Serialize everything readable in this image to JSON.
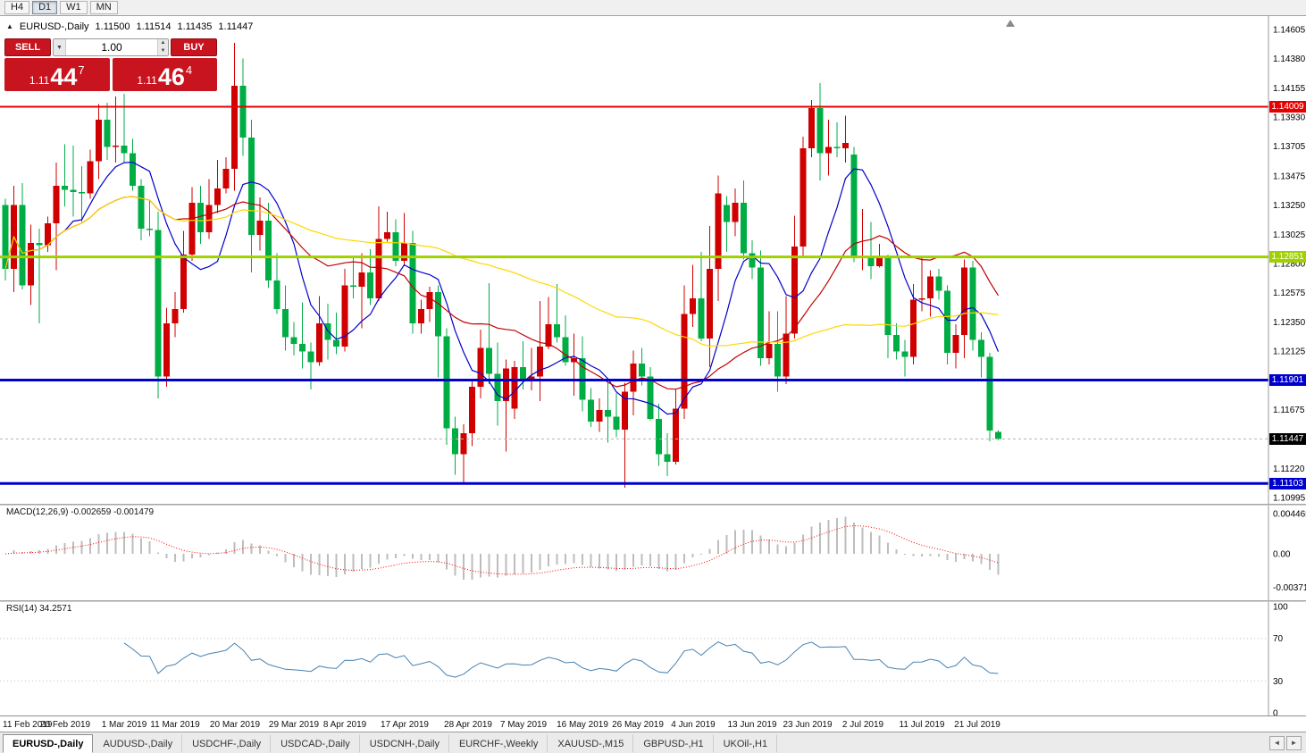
{
  "toolbar": {
    "timeframes": [
      "H4",
      "D1",
      "W1",
      "MN"
    ],
    "active": "D1"
  },
  "info_line": {
    "symbol": "EURUSD-,Daily",
    "open": "1.11500",
    "high": "1.11514",
    "low": "1.11435",
    "close": "1.11447"
  },
  "one_click": {
    "sell_label": "SELL",
    "buy_label": "BUY",
    "lot_value": "1.00",
    "panel_color": "#c8141f",
    "sell_price": {
      "prefix": "1.11",
      "pips": "44",
      "point": "7"
    },
    "buy_price": {
      "prefix": "1.11",
      "pips": "46",
      "point": "4"
    }
  },
  "price_axis": {
    "ticks": [
      "1.14605",
      "1.14380",
      "1.14155",
      "1.13930",
      "1.13705",
      "1.13475",
      "1.13250",
      "1.13025",
      "1.12800",
      "1.12575",
      "1.12350",
      "1.12125",
      "1.11900",
      "1.11675",
      "1.11450",
      "1.11220",
      "1.10995"
    ]
  },
  "levels": [
    {
      "label": "1.14009",
      "price": 1.14009,
      "color": "#e60000",
      "width": 2
    },
    {
      "label": "1.12851",
      "price": 1.12851,
      "color": "#a0d000",
      "width": 3
    },
    {
      "label": "1.11901",
      "price": 1.11901,
      "color": "#0000cd",
      "width": 3
    },
    {
      "label": "1.11103",
      "price": 1.11103,
      "color": "#0000cd",
      "width": 3
    }
  ],
  "current_price": {
    "label": "1.11447",
    "price": 1.11447,
    "box_color": "#000000"
  },
  "chart_data": {
    "type": "candlestick",
    "symbol": "EURUSD",
    "timeframe": "Daily",
    "price_range": {
      "min": 1.10995,
      "max": 1.14605
    },
    "colors": {
      "bull": "#d00000",
      "bear": "#00ad45"
    },
    "moving_averages": [
      {
        "period": 8,
        "color": "#0000cd"
      },
      {
        "period": 21,
        "color": "#c00000"
      },
      {
        "period": 55,
        "color": "#ffd700"
      }
    ],
    "x_labels": [
      {
        "label": "11 Feb 2019",
        "bar": 0
      },
      {
        "label": "20 Feb 2019",
        "bar": 7
      },
      {
        "label": "1 Mar 2019",
        "bar": 14
      },
      {
        "label": "11 Mar 2019",
        "bar": 20
      },
      {
        "label": "20 Mar 2019",
        "bar": 27
      },
      {
        "label": "29 Mar 2019",
        "bar": 34
      },
      {
        "label": "8 Apr 2019",
        "bar": 40
      },
      {
        "label": "17 Apr 2019",
        "bar": 47
      },
      {
        "label": "28 Apr 2019",
        "bar": 54.5
      },
      {
        "label": "7 May 2019",
        "bar": 61
      },
      {
        "label": "16 May 2019",
        "bar": 68
      },
      {
        "label": "26 May 2019",
        "bar": 74.5
      },
      {
        "label": "4 Jun 2019",
        "bar": 81
      },
      {
        "label": "13 Jun 2019",
        "bar": 88
      },
      {
        "label": "23 Jun 2019",
        "bar": 94.5
      },
      {
        "label": "2 Jul 2019",
        "bar": 101
      },
      {
        "label": "11 Jul 2019",
        "bar": 108
      },
      {
        "label": "21 Jul 2019",
        "bar": 114.5
      }
    ],
    "candles": [
      [
        1.1325,
        1.133,
        1.1267,
        1.1276
      ],
      [
        1.1276,
        1.134,
        1.1258,
        1.1325
      ],
      [
        1.1325,
        1.1342,
        1.126,
        1.1263
      ],
      [
        1.1263,
        1.131,
        1.1248,
        1.1296
      ],
      [
        1.1296,
        1.1307,
        1.1234,
        1.1294
      ],
      [
        1.1294,
        1.1316,
        1.1289,
        1.1311
      ],
      [
        1.1311,
        1.1358,
        1.1275,
        1.134
      ],
      [
        1.134,
        1.1372,
        1.1324,
        1.1337
      ],
      [
        1.1337,
        1.1371,
        1.1316,
        1.1335
      ],
      [
        1.1335,
        1.1355,
        1.1312,
        1.1334
      ],
      [
        1.1334,
        1.1368,
        1.133,
        1.1359
      ],
      [
        1.1359,
        1.1403,
        1.1345,
        1.1391
      ],
      [
        1.1391,
        1.1404,
        1.136,
        1.137
      ],
      [
        1.137,
        1.1409,
        1.1358,
        1.1371
      ],
      [
        1.1371,
        1.1411,
        1.1358,
        1.1365
      ],
      [
        1.1365,
        1.1376,
        1.1336,
        1.134
      ],
      [
        1.134,
        1.1345,
        1.1298,
        1.1307
      ],
      [
        1.1307,
        1.1329,
        1.1301,
        1.1306
      ],
      [
        1.1306,
        1.132,
        1.1176,
        1.1193
      ],
      [
        1.1193,
        1.1246,
        1.1185,
        1.1234
      ],
      [
        1.1234,
        1.1258,
        1.1223,
        1.1245
      ],
      [
        1.1245,
        1.1305,
        1.1242,
        1.1287
      ],
      [
        1.1287,
        1.1339,
        1.1282,
        1.1327
      ],
      [
        1.1327,
        1.134,
        1.1295,
        1.1304
      ],
      [
        1.1304,
        1.1345,
        1.1299,
        1.1325
      ],
      [
        1.1325,
        1.136,
        1.1319,
        1.1338
      ],
      [
        1.1338,
        1.1362,
        1.1334,
        1.1353
      ],
      [
        1.1353,
        1.145,
        1.1336,
        1.1417
      ],
      [
        1.1417,
        1.1438,
        1.1363,
        1.1377
      ],
      [
        1.1377,
        1.1391,
        1.1273,
        1.1302
      ],
      [
        1.1302,
        1.1331,
        1.129,
        1.1313
      ],
      [
        1.1313,
        1.1327,
        1.1261,
        1.1267
      ],
      [
        1.1267,
        1.1288,
        1.1241,
        1.1245
      ],
      [
        1.1245,
        1.1263,
        1.1213,
        1.1223
      ],
      [
        1.1223,
        1.1235,
        1.1209,
        1.1218
      ],
      [
        1.1218,
        1.125,
        1.1199,
        1.1212
      ],
      [
        1.1212,
        1.1219,
        1.1183,
        1.1204
      ],
      [
        1.1204,
        1.1255,
        1.1201,
        1.1234
      ],
      [
        1.1234,
        1.1249,
        1.1206,
        1.1221
      ],
      [
        1.1221,
        1.1242,
        1.121,
        1.1216
      ],
      [
        1.1216,
        1.1276,
        1.1212,
        1.1263
      ],
      [
        1.1263,
        1.1285,
        1.1253,
        1.1262
      ],
      [
        1.1262,
        1.1288,
        1.123,
        1.1273
      ],
      [
        1.1273,
        1.1291,
        1.1248,
        1.1253
      ],
      [
        1.1253,
        1.1324,
        1.1251,
        1.1299
      ],
      [
        1.1299,
        1.132,
        1.1297,
        1.1304
      ],
      [
        1.1304,
        1.1314,
        1.1278,
        1.1282
      ],
      [
        1.1282,
        1.1319,
        1.1278,
        1.1296
      ],
      [
        1.1296,
        1.1305,
        1.1226,
        1.1234
      ],
      [
        1.1234,
        1.1252,
        1.1226,
        1.1245
      ],
      [
        1.1245,
        1.1262,
        1.1235,
        1.1258
      ],
      [
        1.1258,
        1.1263,
        1.1192,
        1.1224
      ],
      [
        1.1224,
        1.123,
        1.114,
        1.1153
      ],
      [
        1.1153,
        1.1162,
        1.1117,
        1.1133
      ],
      [
        1.1133,
        1.1156,
        1.1111,
        1.1149
      ],
      [
        1.1149,
        1.1191,
        1.1139,
        1.1185
      ],
      [
        1.1185,
        1.1229,
        1.1176,
        1.1215
      ],
      [
        1.1215,
        1.1265,
        1.1187,
        1.1195
      ],
      [
        1.1195,
        1.1219,
        1.1155,
        1.1174
      ],
      [
        1.1174,
        1.1206,
        1.1135,
        1.1199
      ],
      [
        1.1168,
        1.1205,
        1.116,
        1.12
      ],
      [
        1.12,
        1.122,
        1.1183,
        1.1191
      ],
      [
        1.1191,
        1.1215,
        1.1182,
        1.1193
      ],
      [
        1.1193,
        1.1251,
        1.1174,
        1.1216
      ],
      [
        1.1216,
        1.1254,
        1.1214,
        1.1233
      ],
      [
        1.1233,
        1.1264,
        1.1219,
        1.1223
      ],
      [
        1.1223,
        1.124,
        1.1201,
        1.1204
      ],
      [
        1.1204,
        1.1226,
        1.1178,
        1.1207
      ],
      [
        1.1207,
        1.1224,
        1.1166,
        1.1175
      ],
      [
        1.1175,
        1.1184,
        1.1154,
        1.1158
      ],
      [
        1.1158,
        1.1176,
        1.115,
        1.1167
      ],
      [
        1.1167,
        1.1188,
        1.1142,
        1.1162
      ],
      [
        1.1162,
        1.118,
        1.1146,
        1.1152
      ],
      [
        1.1152,
        1.1188,
        1.1107,
        1.1181
      ],
      [
        1.1181,
        1.1213,
        1.1163,
        1.1203
      ],
      [
        1.1203,
        1.1215,
        1.1186,
        1.1193
      ],
      [
        1.1193,
        1.12,
        1.1159,
        1.116
      ],
      [
        1.116,
        1.1172,
        1.1124,
        1.1133
      ],
      [
        1.1133,
        1.1149,
        1.1116,
        1.1127
      ],
      [
        1.1127,
        1.1183,
        1.1125,
        1.1168
      ],
      [
        1.1168,
        1.1263,
        1.116,
        1.1241
      ],
      [
        1.1241,
        1.1279,
        1.1231,
        1.1253
      ],
      [
        1.1253,
        1.1289,
        1.122,
        1.1222
      ],
      [
        1.1222,
        1.1309,
        1.12,
        1.1276
      ],
      [
        1.1276,
        1.1348,
        1.1251,
        1.1334
      ],
      [
        1.1325,
        1.1332,
        1.1289,
        1.1312
      ],
      [
        1.1312,
        1.1338,
        1.1301,
        1.1327
      ],
      [
        1.1327,
        1.1344,
        1.1283,
        1.1288
      ],
      [
        1.1288,
        1.1298,
        1.1268,
        1.1277
      ],
      [
        1.1277,
        1.129,
        1.1201,
        1.1207
      ],
      [
        1.1207,
        1.1243,
        1.1202,
        1.1218
      ],
      [
        1.1218,
        1.1243,
        1.1181,
        1.1193
      ],
      [
        1.1193,
        1.1255,
        1.1187,
        1.1226
      ],
      [
        1.1226,
        1.1317,
        1.1222,
        1.1293
      ],
      [
        1.1293,
        1.1378,
        1.1285,
        1.1369
      ],
      [
        1.1369,
        1.1406,
        1.1362,
        1.14
      ],
      [
        1.14,
        1.1419,
        1.1344,
        1.1365
      ],
      [
        1.1365,
        1.1391,
        1.1348,
        1.137
      ],
      [
        1.137,
        1.1389,
        1.1362,
        1.1369
      ],
      [
        1.1369,
        1.1394,
        1.1358,
        1.1373
      ],
      [
        1.1364,
        1.137,
        1.1281,
        1.1285
      ],
      [
        1.1285,
        1.1322,
        1.1275,
        1.1286
      ],
      [
        1.1286,
        1.1312,
        1.1268,
        1.1278
      ],
      [
        1.1278,
        1.1295,
        1.1277,
        1.1284
      ],
      [
        1.1284,
        1.1287,
        1.1207,
        1.1225
      ],
      [
        1.1225,
        1.1234,
        1.1206,
        1.1212
      ],
      [
        1.1212,
        1.1221,
        1.1193,
        1.1208
      ],
      [
        1.1208,
        1.1264,
        1.1202,
        1.1252
      ],
      [
        1.1252,
        1.1286,
        1.1243,
        1.1253
      ],
      [
        1.1253,
        1.1275,
        1.1239,
        1.127
      ],
      [
        1.127,
        1.1276,
        1.1252,
        1.1259
      ],
      [
        1.1259,
        1.1263,
        1.1202,
        1.1211
      ],
      [
        1.1211,
        1.1233,
        1.1199,
        1.1225
      ],
      [
        1.1225,
        1.1283,
        1.1207,
        1.1277
      ],
      [
        1.1277,
        1.1282,
        1.1213,
        1.1221
      ],
      [
        1.1221,
        1.1227,
        1.1192,
        1.1208
      ],
      [
        1.1208,
        1.1211,
        1.1143,
        1.1151
      ],
      [
        1.115,
        1.11514,
        1.11435,
        1.11447
      ]
    ]
  },
  "macd": {
    "label": "MACD(12,26,9) -0.002659 -0.001479",
    "params": [
      12,
      26,
      9
    ],
    "axis_ticks": [
      "0.004465",
      "0.00",
      "-0.003715"
    ],
    "hist_color": "#bdbdbd",
    "signal_color": "#ff0000"
  },
  "rsi": {
    "label": "RSI(14) 34.2571",
    "period": 14,
    "value": "34.2571",
    "axis_ticks": [
      "100",
      "70",
      "30",
      "0"
    ],
    "levels": [
      70,
      30
    ],
    "line_color": "#4682b4"
  },
  "date_axis_note": "labels come from chart_data.x_labels",
  "tabs": {
    "active_index": 0,
    "items": [
      "EURUSD-,Daily",
      "AUDUSD-,Daily",
      "USDCHF-,Daily",
      "USDCAD-,Daily",
      "USDCNH-,Daily",
      "EURCHF-,Weekly",
      "XAUUSD-,M15",
      "GBPUSD-,H1",
      "UKOil-,H1"
    ]
  }
}
